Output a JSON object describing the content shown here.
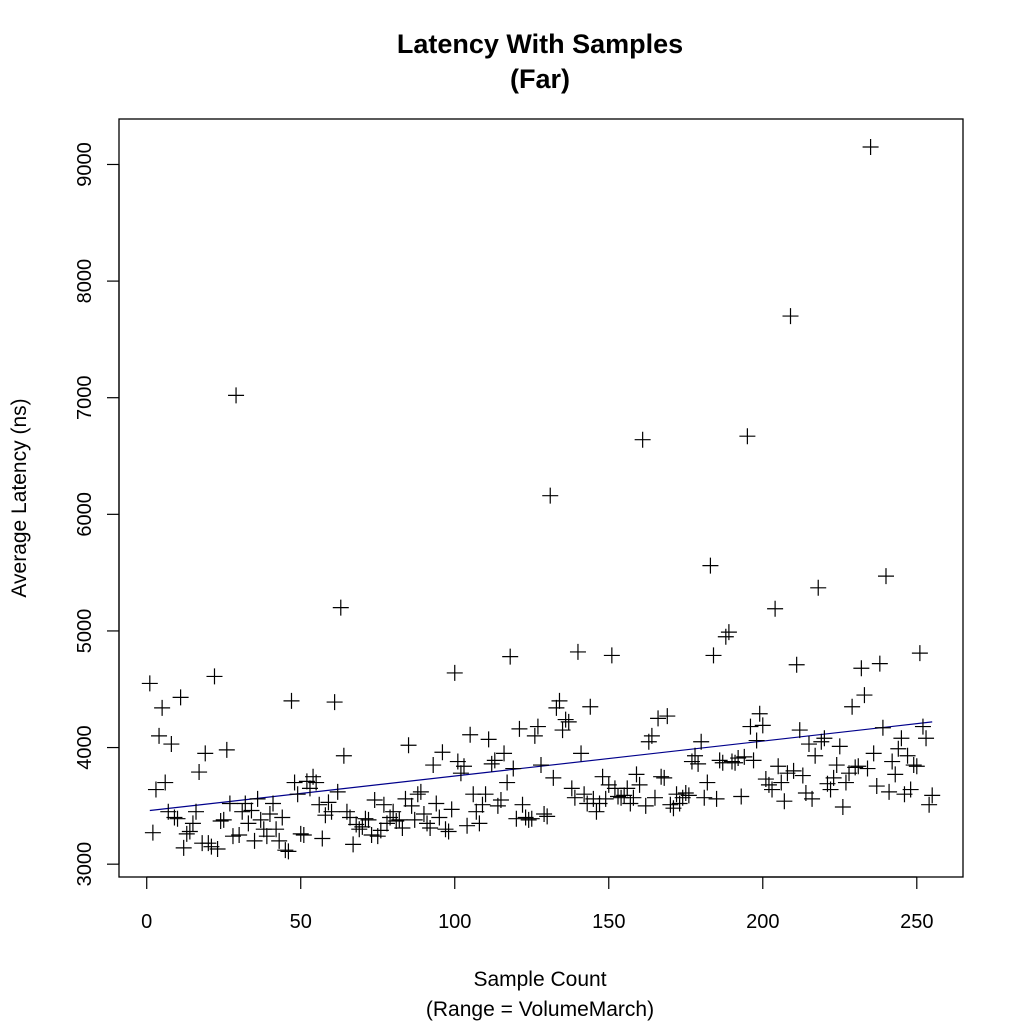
{
  "chart_data": {
    "type": "scatter",
    "title": "Latency With Samples",
    "subtitle": "(Far)",
    "xlabel": "Sample Count",
    "xlabel_sub": "(Range = VolumeMarch)",
    "ylabel": "Average Latency (ns)",
    "xlim": [
      -9,
      265
    ],
    "ylim": [
      2890,
      9390
    ],
    "x_ticks": [
      0,
      50,
      100,
      150,
      200,
      250
    ],
    "y_ticks": [
      3000,
      4000,
      5000,
      6000,
      7000,
      8000,
      9000
    ],
    "marker": "plus",
    "marker_color": "#000000",
    "trend_line": {
      "x": [
        1,
        255
      ],
      "y": [
        3460,
        4220
      ],
      "color": "#00008b"
    },
    "points": [
      [
        1,
        4550
      ],
      [
        2,
        3270
      ],
      [
        3,
        3640
      ],
      [
        4,
        4100
      ],
      [
        5,
        4340
      ],
      [
        6,
        3700
      ],
      [
        7,
        3450
      ],
      [
        8,
        4030
      ],
      [
        9,
        3400
      ],
      [
        10,
        3390
      ],
      [
        11,
        4430
      ],
      [
        12,
        3140
      ],
      [
        13,
        3260
      ],
      [
        14,
        3280
      ],
      [
        15,
        3350
      ],
      [
        16,
        3450
      ],
      [
        17,
        3790
      ],
      [
        18,
        3180
      ],
      [
        19,
        3950
      ],
      [
        20,
        3180
      ],
      [
        21,
        3150
      ],
      [
        22,
        4610
      ],
      [
        23,
        3130
      ],
      [
        24,
        3370
      ],
      [
        25,
        3380
      ],
      [
        26,
        3980
      ],
      [
        27,
        3520
      ],
      [
        28,
        3240
      ],
      [
        29,
        7020
      ],
      [
        30,
        3250
      ],
      [
        31,
        3450
      ],
      [
        32,
        3520
      ],
      [
        33,
        3350
      ],
      [
        34,
        3460
      ],
      [
        35,
        3200
      ],
      [
        36,
        3560
      ],
      [
        37,
        3380
      ],
      [
        38,
        3300
      ],
      [
        39,
        3240
      ],
      [
        40,
        3430
      ],
      [
        41,
        3520
      ],
      [
        42,
        3300
      ],
      [
        43,
        3200
      ],
      [
        44,
        3400
      ],
      [
        45,
        3120
      ],
      [
        46,
        3110
      ],
      [
        47,
        4400
      ],
      [
        48,
        3700
      ],
      [
        49,
        3600
      ],
      [
        50,
        3260
      ],
      [
        51,
        3250
      ],
      [
        52,
        3710
      ],
      [
        53,
        3650
      ],
      [
        54,
        3750
      ],
      [
        55,
        3700
      ],
      [
        56,
        3510
      ],
      [
        57,
        3220
      ],
      [
        58,
        3420
      ],
      [
        59,
        3530
      ],
      [
        60,
        3450
      ],
      [
        61,
        4390
      ],
      [
        62,
        3620
      ],
      [
        63,
        5200
      ],
      [
        64,
        3930
      ],
      [
        65,
        3450
      ],
      [
        66,
        3400
      ],
      [
        67,
        3170
      ],
      [
        68,
        3340
      ],
      [
        69,
        3300
      ],
      [
        70,
        3320
      ],
      [
        71,
        3390
      ],
      [
        72,
        3380
      ],
      [
        73,
        3250
      ],
      [
        74,
        3550
      ],
      [
        75,
        3240
      ],
      [
        76,
        3290
      ],
      [
        77,
        3510
      ],
      [
        78,
        3350
      ],
      [
        79,
        3400
      ],
      [
        80,
        3450
      ],
      [
        81,
        3370
      ],
      [
        82,
        3380
      ],
      [
        83,
        3310
      ],
      [
        84,
        3560
      ],
      [
        85,
        4020
      ],
      [
        86,
        3500
      ],
      [
        87,
        3380
      ],
      [
        88,
        3600
      ],
      [
        89,
        3620
      ],
      [
        90,
        3430
      ],
      [
        91,
        3350
      ],
      [
        92,
        3310
      ],
      [
        93,
        3850
      ],
      [
        94,
        3520
      ],
      [
        95,
        3400
      ],
      [
        96,
        3960
      ],
      [
        97,
        3300
      ],
      [
        98,
        3280
      ],
      [
        99,
        3470
      ],
      [
        100,
        4640
      ],
      [
        101,
        3880
      ],
      [
        102,
        3780
      ],
      [
        103,
        3840
      ],
      [
        104,
        3330
      ],
      [
        105,
        4110
      ],
      [
        106,
        3600
      ],
      [
        107,
        3450
      ],
      [
        108,
        3350
      ],
      [
        109,
        3510
      ],
      [
        110,
        3600
      ],
      [
        111,
        4070
      ],
      [
        112,
        3860
      ],
      [
        113,
        3890
      ],
      [
        114,
        3500
      ],
      [
        115,
        3550
      ],
      [
        116,
        3950
      ],
      [
        117,
        3700
      ],
      [
        118,
        4780
      ],
      [
        119,
        3820
      ],
      [
        120,
        3390
      ],
      [
        121,
        4160
      ],
      [
        122,
        3510
      ],
      [
        123,
        3400
      ],
      [
        124,
        3380
      ],
      [
        125,
        3390
      ],
      [
        126,
        4100
      ],
      [
        127,
        4180
      ],
      [
        128,
        3850
      ],
      [
        129,
        3430
      ],
      [
        130,
        3410
      ],
      [
        131,
        6160
      ],
      [
        132,
        3740
      ],
      [
        133,
        4340
      ],
      [
        134,
        4400
      ],
      [
        135,
        4150
      ],
      [
        136,
        4240
      ],
      [
        137,
        4220
      ],
      [
        138,
        3650
      ],
      [
        139,
        3570
      ],
      [
        140,
        4820
      ],
      [
        141,
        3950
      ],
      [
        142,
        3600
      ],
      [
        143,
        3520
      ],
      [
        144,
        4350
      ],
      [
        145,
        3560
      ],
      [
        146,
        3450
      ],
      [
        147,
        3520
      ],
      [
        148,
        3750
      ],
      [
        149,
        3560
      ],
      [
        150,
        3680
      ],
      [
        151,
        4790
      ],
      [
        152,
        3650
      ],
      [
        153,
        3580
      ],
      [
        154,
        3570
      ],
      [
        155,
        3590
      ],
      [
        156,
        3650
      ],
      [
        157,
        3520
      ],
      [
        158,
        3570
      ],
      [
        159,
        3770
      ],
      [
        160,
        3680
      ],
      [
        161,
        6640
      ],
      [
        162,
        3500
      ],
      [
        163,
        4050
      ],
      [
        164,
        4100
      ],
      [
        165,
        3570
      ],
      [
        166,
        4250
      ],
      [
        167,
        3750
      ],
      [
        168,
        3740
      ],
      [
        169,
        4270
      ],
      [
        170,
        3510
      ],
      [
        171,
        3480
      ],
      [
        172,
        3600
      ],
      [
        173,
        3520
      ],
      [
        174,
        3570
      ],
      [
        175,
        3610
      ],
      [
        176,
        3590
      ],
      [
        177,
        3880
      ],
      [
        178,
        3930
      ],
      [
        179,
        3860
      ],
      [
        180,
        4050
      ],
      [
        181,
        3570
      ],
      [
        182,
        3700
      ],
      [
        183,
        5560
      ],
      [
        184,
        4790
      ],
      [
        185,
        3560
      ],
      [
        186,
        3890
      ],
      [
        187,
        3870
      ],
      [
        188,
        4950
      ],
      [
        189,
        4990
      ],
      [
        190,
        3880
      ],
      [
        191,
        3870
      ],
      [
        192,
        3910
      ],
      [
        193,
        3580
      ],
      [
        194,
        3920
      ],
      [
        195,
        6670
      ],
      [
        196,
        4180
      ],
      [
        197,
        3890
      ],
      [
        198,
        4060
      ],
      [
        199,
        4290
      ],
      [
        200,
        4190
      ],
      [
        201,
        3730
      ],
      [
        202,
        3680
      ],
      [
        203,
        3640
      ],
      [
        204,
        5190
      ],
      [
        205,
        3840
      ],
      [
        206,
        3700
      ],
      [
        207,
        3540
      ],
      [
        208,
        3780
      ],
      [
        209,
        7700
      ],
      [
        210,
        3800
      ],
      [
        211,
        4710
      ],
      [
        212,
        4150
      ],
      [
        213,
        3760
      ],
      [
        214,
        3610
      ],
      [
        215,
        4030
      ],
      [
        216,
        3560
      ],
      [
        217,
        3930
      ],
      [
        218,
        5370
      ],
      [
        219,
        4050
      ],
      [
        220,
        4080
      ],
      [
        221,
        3690
      ],
      [
        222,
        3640
      ],
      [
        223,
        3740
      ],
      [
        224,
        3850
      ],
      [
        225,
        4010
      ],
      [
        226,
        3490
      ],
      [
        227,
        3700
      ],
      [
        228,
        3780
      ],
      [
        229,
        4350
      ],
      [
        230,
        3830
      ],
      [
        231,
        3840
      ],
      [
        232,
        4680
      ],
      [
        233,
        4450
      ],
      [
        234,
        3820
      ],
      [
        235,
        9150
      ],
      [
        236,
        3950
      ],
      [
        237,
        3670
      ],
      [
        238,
        4720
      ],
      [
        239,
        4170
      ],
      [
        240,
        5470
      ],
      [
        241,
        3620
      ],
      [
        242,
        3880
      ],
      [
        243,
        3770
      ],
      [
        244,
        3990
      ],
      [
        245,
        4080
      ],
      [
        246,
        3600
      ],
      [
        247,
        3930
      ],
      [
        248,
        3640
      ],
      [
        249,
        3850
      ],
      [
        250,
        3840
      ],
      [
        251,
        4810
      ],
      [
        252,
        4180
      ],
      [
        253,
        4080
      ],
      [
        254,
        3510
      ],
      [
        255,
        3590
      ]
    ]
  }
}
